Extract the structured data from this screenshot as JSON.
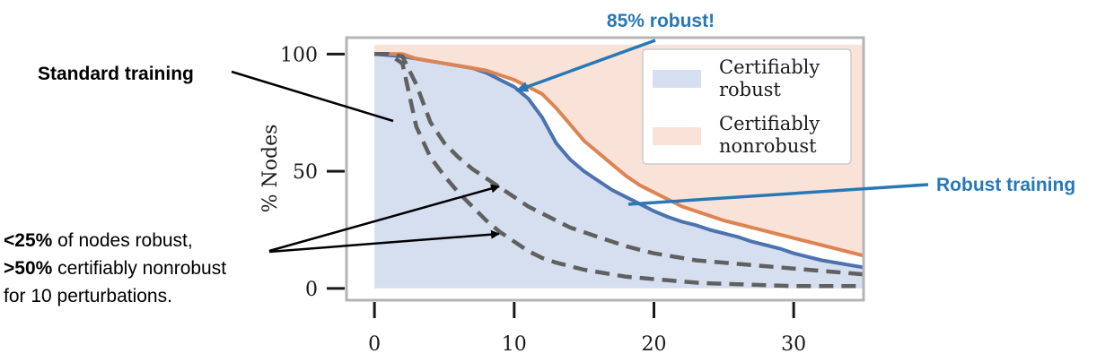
{
  "chart_data": {
    "type": "area",
    "xlabel": "",
    "ylabel": "% Nodes",
    "xlim": [
      -2,
      35
    ],
    "ylim": [
      -5,
      107
    ],
    "xticks": [
      "0",
      "10",
      "20",
      "30"
    ],
    "yticks": [
      "0",
      "50",
      "100"
    ],
    "grid": false,
    "legend_position": "top-right",
    "legend": [
      {
        "label_line1": "Certifiably",
        "label_line2": "robust",
        "color": "#d6dff0"
      },
      {
        "label_line1": "Certifiably",
        "label_line2": "nonrobust",
        "color": "#f9e3d9"
      }
    ],
    "x": [
      0,
      1,
      2,
      3,
      4,
      5,
      6,
      7,
      8,
      9,
      10,
      11,
      12,
      13,
      14,
      15,
      16,
      17,
      18,
      19,
      20,
      21,
      22,
      23,
      24,
      25,
      26,
      27,
      28,
      29,
      30,
      31,
      32,
      33,
      34,
      35
    ],
    "series": [
      {
        "name": "Robust training (robust)",
        "color": "#4c72b0",
        "style": "solid",
        "values": [
          100,
          99.5,
          99,
          98,
          97,
          96,
          95,
          94,
          92,
          89,
          86,
          81,
          73,
          62,
          55,
          50,
          46,
          42,
          39,
          36,
          33,
          30.5,
          28.5,
          27,
          25,
          23.5,
          22,
          20,
          18.5,
          17,
          15,
          13.5,
          12,
          11,
          10,
          9
        ]
      },
      {
        "name": "Robust training (nonrobust)",
        "color": "#dd8452",
        "style": "solid",
        "values": [
          100,
          100,
          100,
          98,
          97,
          96,
          95,
          94,
          93,
          91,
          89,
          86,
          83,
          77,
          70,
          63,
          58,
          53,
          48,
          44,
          41,
          38,
          35,
          33,
          31,
          29,
          27.5,
          26,
          24.5,
          23,
          21.5,
          20,
          18.5,
          17,
          15.5,
          14
        ]
      },
      {
        "name": "Standard training (robust)",
        "color": "#606060",
        "style": "dashed",
        "values": [
          100,
          100,
          96,
          69,
          56,
          48,
          41,
          35,
          29,
          24,
          20,
          16,
          13,
          11,
          9.5,
          8,
          7,
          6,
          5,
          4.5,
          4,
          3.5,
          3,
          2.5,
          2.2,
          2,
          1.8,
          1.6,
          1.4,
          1.2,
          1,
          1,
          1,
          1,
          1,
          1
        ]
      },
      {
        "name": "Standard training (nonrobust)",
        "color": "#606060",
        "style": "dashed",
        "values": [
          100,
          100,
          99,
          87,
          71,
          62,
          56,
          51,
          47,
          43,
          39,
          35,
          32,
          29,
          26,
          24,
          22,
          20,
          18,
          16.5,
          15,
          14,
          13,
          12,
          11.5,
          11,
          10.5,
          10,
          9.5,
          9,
          8.5,
          8,
          7.5,
          7,
          6.5,
          6
        ]
      }
    ],
    "annotations": [
      {
        "text": "85% robust!",
        "color": "#2878b5"
      },
      {
        "text": "Robust training",
        "color": "#2878b5"
      },
      {
        "text": "Standard training",
        "color": "#000000"
      },
      {
        "bold": "<25%",
        "rest": " of nodes robust,"
      },
      {
        "bold": ">50%",
        "rest": " certifiably nonrobust"
      },
      {
        "text": "for 10 perturbations."
      }
    ]
  }
}
